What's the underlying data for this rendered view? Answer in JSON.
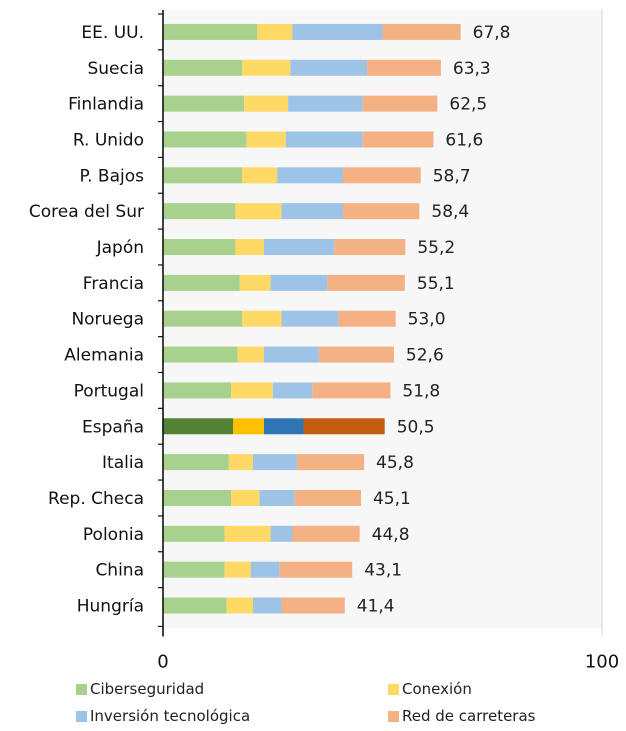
{
  "chart_data": {
    "type": "bar",
    "orientation": "horizontal",
    "stacked": true,
    "categories": [
      "EE. UU.",
      "Suecia",
      "Finlandia",
      "R. Unido",
      "P. Bajos",
      "Corea del Sur",
      "Japón",
      "Francia",
      "Noruega",
      "Alemania",
      "Portugal",
      "España",
      "Italia",
      "Rep. Checa",
      "Polonia",
      "China",
      "Hungría"
    ],
    "totals": [
      "67,8",
      "63,3",
      "62,5",
      "61,6",
      "58,7",
      "58,4",
      "55,2",
      "55,1",
      "53,0",
      "52,6",
      "51,8",
      "50,5",
      "45,8",
      "45,1",
      "44,8",
      "43,1",
      "41,4"
    ],
    "series": [
      {
        "name": "Ciberseguridad",
        "color": "#a9d18e",
        "highlight_color": "#548235",
        "values": [
          21.5,
          18.0,
          18.5,
          19.0,
          18.0,
          16.5,
          16.5,
          17.5,
          18.0,
          17.0,
          15.5,
          16.0,
          15.0,
          15.5,
          14.0,
          14.0,
          14.5
        ]
      },
      {
        "name": "Conexión",
        "color": "#ffd966",
        "highlight_color": "#ffc000",
        "values": [
          8.0,
          11.0,
          10.0,
          9.0,
          8.0,
          10.5,
          6.5,
          7.0,
          9.0,
          6.0,
          9.5,
          7.0,
          5.5,
          6.5,
          10.5,
          6.0,
          6.0
        ]
      },
      {
        "name": "Inversión tecnológica",
        "color": "#9dc3e6",
        "highlight_color": "#2e75b6",
        "values": [
          20.5,
          17.5,
          17.0,
          17.5,
          15.0,
          14.0,
          16.0,
          13.0,
          13.0,
          12.5,
          9.0,
          9.0,
          10.0,
          8.0,
          5.0,
          6.5,
          6.5
        ]
      },
      {
        "name": "Red de carreteras",
        "color": "#f4b183",
        "highlight_color": "#c55a11",
        "values": [
          17.8,
          16.8,
          17.0,
          16.1,
          17.7,
          17.4,
          16.2,
          17.6,
          13.0,
          17.1,
          17.8,
          18.5,
          15.3,
          15.1,
          15.3,
          16.6,
          14.4
        ]
      }
    ],
    "highlight_category": "España",
    "xlim": [
      0,
      100
    ],
    "x_ticks": [
      "0",
      "100"
    ],
    "grid": false,
    "legend_position": "bottom"
  }
}
